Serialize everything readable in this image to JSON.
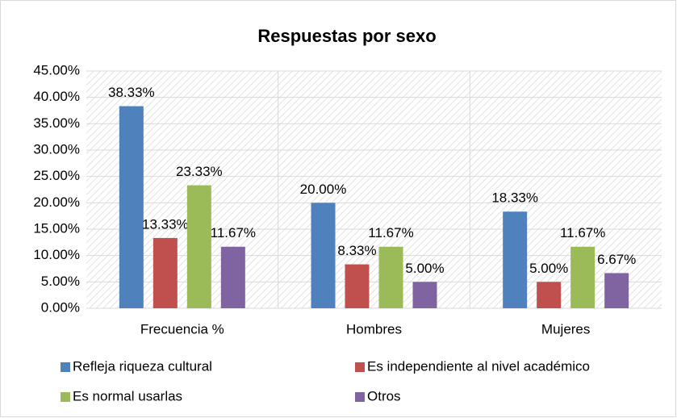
{
  "chart_data": {
    "type": "bar",
    "title": "Respuestas por sexo",
    "categories": [
      "Frecuencia %",
      "Hombres",
      "Mujeres"
    ],
    "series": [
      {
        "name": "Refleja riqueza cultural",
        "color": "#4f81bd",
        "values": [
          38.33,
          20.0,
          18.33
        ],
        "value_labels": [
          "38.33%",
          "20.00%",
          "18.33%"
        ]
      },
      {
        "name": "Es independiente al nivel académico",
        "color": "#c0504d",
        "values": [
          13.33,
          8.33,
          5.0
        ],
        "value_labels": [
          "13.33%",
          "8.33%",
          "5.00%"
        ]
      },
      {
        "name": "Es normal usarlas",
        "color": "#9bbb59",
        "values": [
          23.33,
          11.67,
          11.67
        ],
        "value_labels": [
          "23.33%",
          "11.67%",
          "11.67%"
        ]
      },
      {
        "name": "Otros",
        "color": "#8064a2",
        "values": [
          11.67,
          5.0,
          6.67
        ],
        "value_labels": [
          "11.67%",
          "5.00%",
          "6.67%"
        ]
      }
    ],
    "ylim": [
      0,
      45
    ],
    "yticks": [
      {
        "value": 0,
        "label": "0.00%"
      },
      {
        "value": 5,
        "label": "5.00%"
      },
      {
        "value": 10,
        "label": "10.00%"
      },
      {
        "value": 15,
        "label": "15.00%"
      },
      {
        "value": 20,
        "label": "20.00%"
      },
      {
        "value": 25,
        "label": "25.00%"
      },
      {
        "value": 30,
        "label": "30.00%"
      },
      {
        "value": 35,
        "label": "35.00%"
      },
      {
        "value": 40,
        "label": "40.00%"
      },
      {
        "value": 45,
        "label": "45.00%"
      }
    ],
    "grid": true
  }
}
